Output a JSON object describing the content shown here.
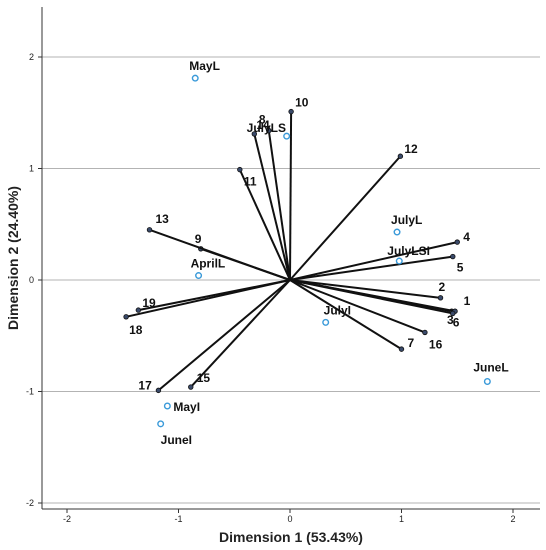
{
  "chart_data": {
    "type": "scatter",
    "subtype": "biplot",
    "xlabel": "Dimension 1 (53.43%)",
    "ylabel": "Dimension 2 (24.40%)",
    "xlim": [
      -2.2,
      2.2
    ],
    "ylim": [
      -2.0,
      2.2
    ],
    "xticks": [
      "-2",
      "-1",
      "0",
      "1",
      "2"
    ],
    "yticks": [
      "-2",
      "-1",
      "0",
      "1",
      "2"
    ],
    "grid": "horizontal",
    "vector_color": "#111111",
    "object_color": "#3a9ad9",
    "vectors": [
      {
        "label": "1",
        "x": 1.45,
        "y": -0.28
      },
      {
        "label": "2",
        "x": 1.35,
        "y": -0.16
      },
      {
        "label": "3",
        "x": 1.48,
        "y": -0.28
      },
      {
        "label": "4",
        "x": 1.5,
        "y": 0.34
      },
      {
        "label": "5",
        "x": 1.46,
        "y": 0.21
      },
      {
        "label": "6",
        "x": 1.46,
        "y": -0.3
      },
      {
        "label": "7",
        "x": 1.0,
        "y": -0.62
      },
      {
        "label": "8",
        "x": -0.19,
        "y": 1.34
      },
      {
        "label": "9",
        "x": -0.8,
        "y": 0.28
      },
      {
        "label": "10",
        "x": 0.01,
        "y": 1.51
      },
      {
        "label": "11",
        "x": -0.45,
        "y": 0.99
      },
      {
        "label": "12",
        "x": 0.99,
        "y": 1.11
      },
      {
        "label": "13",
        "x": -1.26,
        "y": 0.45
      },
      {
        "label": "14",
        "x": -0.32,
        "y": 1.31
      },
      {
        "label": "15",
        "x": -0.89,
        "y": -0.96
      },
      {
        "label": "16",
        "x": 1.21,
        "y": -0.47
      },
      {
        "label": "17",
        "x": -1.18,
        "y": -0.99
      },
      {
        "label": "18",
        "x": -1.47,
        "y": -0.33
      },
      {
        "label": "19",
        "x": -1.36,
        "y": -0.27
      }
    ],
    "objects": [
      {
        "label": "MayL",
        "x": -0.85,
        "y": 1.81
      },
      {
        "label": "JulyLS",
        "x": -0.03,
        "y": 1.29
      },
      {
        "label": "JulyL",
        "x": 0.96,
        "y": 0.43
      },
      {
        "label": "JulyLSI",
        "x": 0.98,
        "y": 0.17
      },
      {
        "label": "AprilL",
        "x": -0.82,
        "y": 0.04
      },
      {
        "label": "JulyI",
        "x": 0.32,
        "y": -0.38
      },
      {
        "label": "JuneL",
        "x": 1.77,
        "y": -0.91
      },
      {
        "label": "MayI",
        "x": -1.1,
        "y": -1.13
      },
      {
        "label": "JuneI",
        "x": -1.16,
        "y": -1.29
      }
    ]
  }
}
